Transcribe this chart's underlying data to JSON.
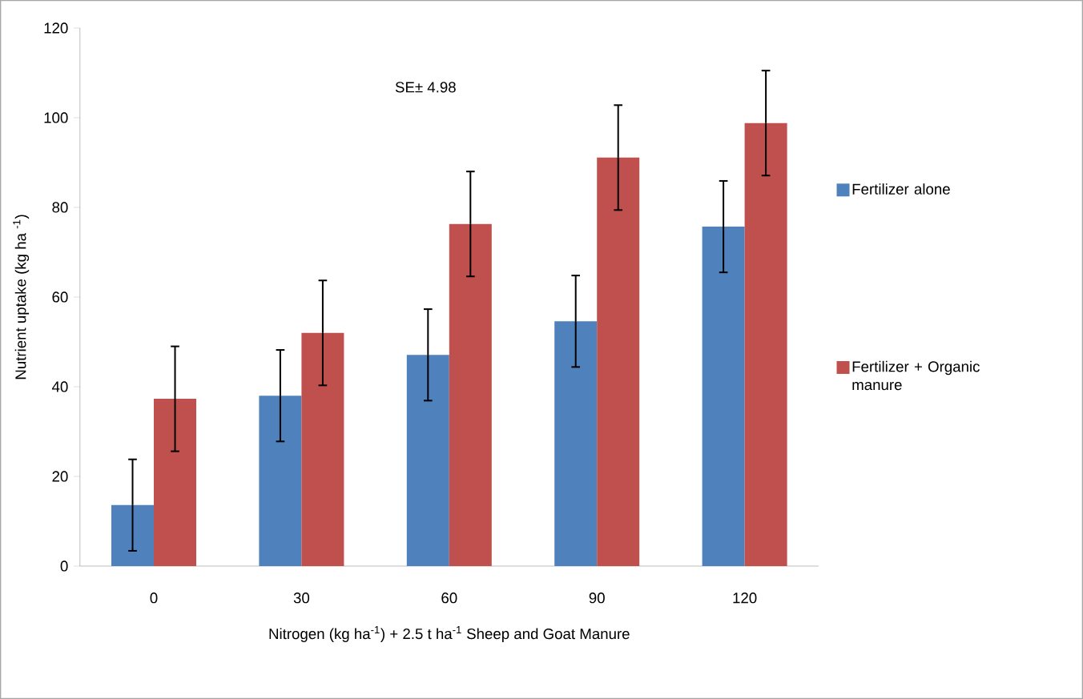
{
  "chart_data": {
    "type": "bar",
    "xlabel": "Nitrogen (kg ha$^{-1}$) + 2.5 t ha$^{-1}$ Sheep and Goat Manure",
    "ylabel": "Nutrient uptake (kg ha $^{-1}$)",
    "categories": [
      "0",
      "30",
      "60",
      "90",
      "120"
    ],
    "series": [
      {
        "name": "Fertilizer alone",
        "color": "#4f81bd",
        "values": [
          13.6,
          38.0,
          47.1,
          54.6,
          75.7
        ],
        "errors": [
          10.2,
          10.2,
          10.2,
          10.2,
          10.2
        ]
      },
      {
        "name": "Fertilizer + Organic manure",
        "color": "#c0504d",
        "values": [
          37.3,
          52.0,
          76.3,
          91.1,
          98.8
        ],
        "errors": [
          11.7,
          11.7,
          11.7,
          11.7,
          11.7
        ]
      }
    ],
    "ylim": [
      0,
      120
    ],
    "yticks": [
      0,
      20,
      40,
      60,
      80,
      100,
      120
    ],
    "annotations": [
      "SE±  4.98"
    ],
    "legend": "right",
    "grid": false
  }
}
